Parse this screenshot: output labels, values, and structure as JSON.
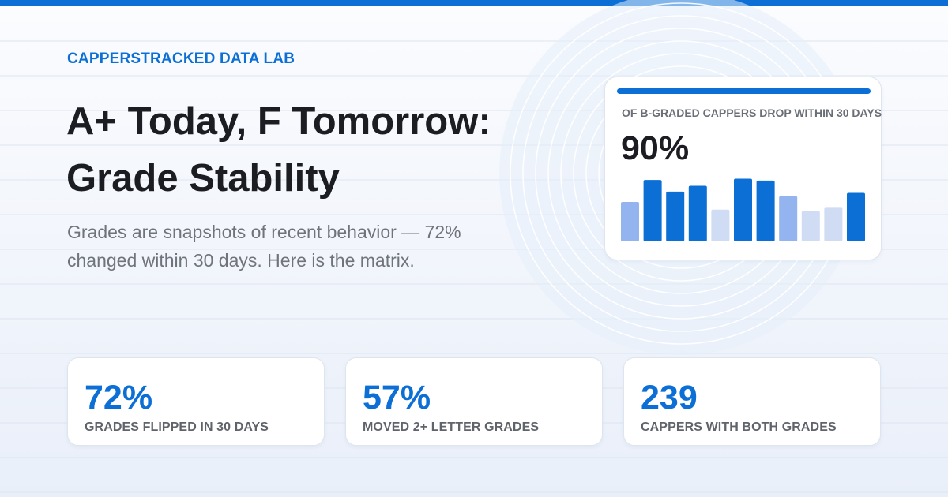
{
  "colors": {
    "accent": "#0b6fd6",
    "bar_dark": "#0b6fd6",
    "bar_mid": "#93b4ee",
    "bar_light": "#cfdcf3"
  },
  "eyebrow": "CAPPERSTRACKED DATA LAB",
  "title_line1": "A+ Today, F Tomorrow:",
  "title_line2": "Grade Stability",
  "subtitle_line1": "Grades are snapshots of recent behavior — 72%",
  "subtitle_line2": "changed within 30 days. Here is the matrix.",
  "feature": {
    "label": "OF B-GRADED CAPPERS DROP WITHIN 30 DAYS",
    "value": "90%",
    "bars": [
      {
        "value": 0.61,
        "tone": "mid"
      },
      {
        "value": 0.95,
        "tone": "dark"
      },
      {
        "value": 0.77,
        "tone": "dark"
      },
      {
        "value": 0.86,
        "tone": "dark"
      },
      {
        "value": 0.49,
        "tone": "light"
      },
      {
        "value": 0.97,
        "tone": "dark"
      },
      {
        "value": 0.94,
        "tone": "dark"
      },
      {
        "value": 0.7,
        "tone": "mid"
      },
      {
        "value": 0.47,
        "tone": "light"
      },
      {
        "value": 0.52,
        "tone": "light"
      },
      {
        "value": 0.75,
        "tone": "dark"
      }
    ]
  },
  "stats": [
    {
      "value": "72%",
      "label": "GRADES FLIPPED IN 30 DAYS"
    },
    {
      "value": "57%",
      "label": "MOVED 2+ LETTER GRADES"
    },
    {
      "value": "239",
      "label": "CAPPERS WITH BOTH GRADES"
    }
  ]
}
